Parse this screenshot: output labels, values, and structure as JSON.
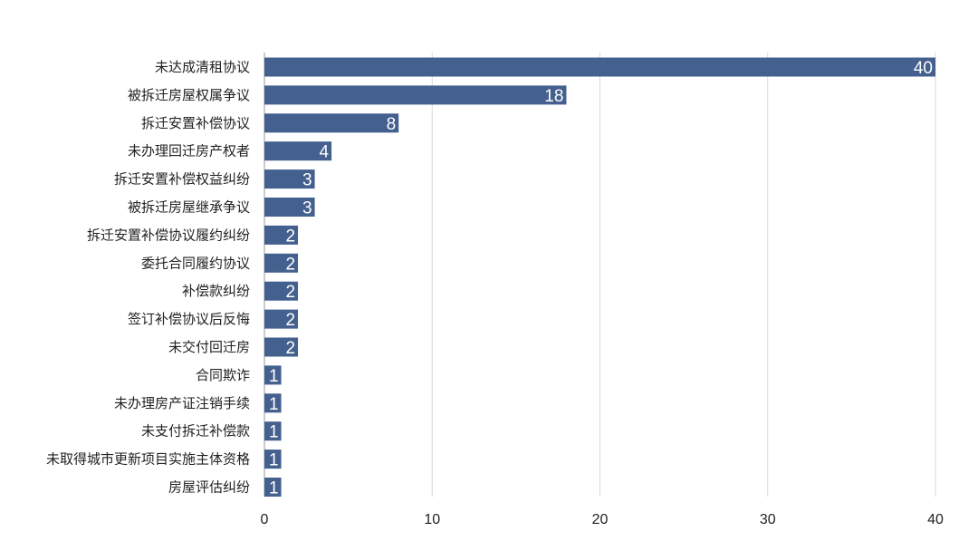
{
  "chart_data": {
    "type": "bar",
    "orientation": "horizontal",
    "categories": [
      "未达成清租协议",
      "被拆迁房屋权属争议",
      "拆迁安置补偿协议",
      "未办理回迁房产权者",
      "拆迁安置补偿权益纠纷",
      "被拆迁房屋继承争议",
      "拆迁安置补偿协议履约纠纷",
      "委托合同履约协议",
      "补偿款纠纷",
      "签订补偿协议后反悔",
      "未交付回迁房",
      "合同欺诈",
      "未办理房产证注销手续",
      "未支付拆迁补偿款",
      "未取得城市更新项目实施主体资格",
      "房屋评估纠纷"
    ],
    "values": [
      40,
      18,
      8,
      4,
      3,
      3,
      2,
      2,
      2,
      2,
      2,
      1,
      1,
      1,
      1,
      1
    ],
    "xlim": [
      0,
      40
    ],
    "xticks": [
      0,
      10,
      20,
      30,
      40
    ],
    "grid": true,
    "bar_color": "#44608e",
    "grid_color": "#d9d9d9",
    "data_labels": true
  }
}
